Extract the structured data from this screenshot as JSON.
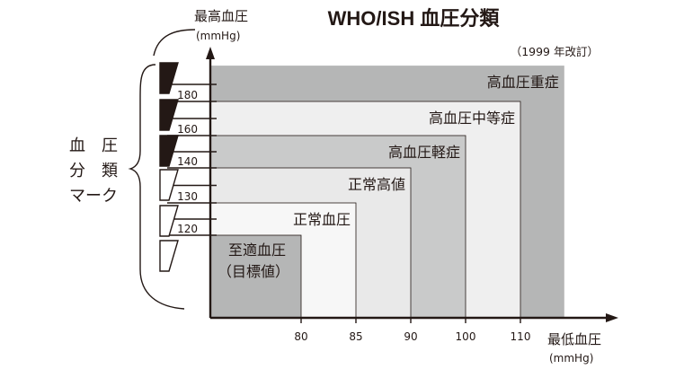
{
  "chart_data": {
    "type": "area",
    "title": "WHO/ISH 血圧分類",
    "subtitle": "（1999 年改訂）",
    "ylabel": "最高血圧",
    "ylabel_unit": "(mmHg)",
    "xlabel": "最低血圧",
    "xlabel_unit": "(mmHg)",
    "xlim": [
      71.5,
      118
    ],
    "ylim": [
      97,
      201
    ],
    "x_ticks": [
      80,
      85,
      90,
      100,
      110
    ],
    "y_ticks": [
      120,
      130,
      140,
      160,
      180
    ],
    "y_tick_marks": [
      120,
      125,
      130,
      135,
      140,
      150,
      160,
      170,
      180,
      190
    ],
    "series": [
      {
        "name": "高血圧重症",
        "x_max": 118,
        "y_max": 201,
        "color": "#b5b6b6"
      },
      {
        "name": "高血圧中等症",
        "x_max": 110,
        "y_max": 180,
        "color": "#efefef"
      },
      {
        "name": "高血圧軽症",
        "x_max": 100,
        "y_max": 160,
        "color": "#c9caca"
      },
      {
        "name": "正常高値",
        "x_max": 90,
        "y_max": 140,
        "color": "#e9e9e9"
      },
      {
        "name": "正常血圧",
        "x_max": 85,
        "y_max": 130,
        "color": "#f7f7f7"
      },
      {
        "name": "至適血圧",
        "sublabel": "（目標値）",
        "x_max": 80,
        "y_max": 120,
        "color": "#b5b6b6"
      }
    ],
    "grid": false
  },
  "marks": {
    "label_lines": [
      "血　圧",
      "分　類",
      "マーク"
    ],
    "markers": [
      {
        "level": "高血圧重症",
        "filled": true
      },
      {
        "level": "高血圧中等症",
        "filled": true
      },
      {
        "level": "高血圧軽症",
        "filled": true
      },
      {
        "level": "正常高値",
        "filled": false
      },
      {
        "level": "正常血圧",
        "filled": false
      },
      {
        "level": "至適血圧",
        "filled": false
      }
    ]
  },
  "colors": {
    "ink": "#231815",
    "axis": "#231815",
    "marker_fill": "#231815"
  }
}
